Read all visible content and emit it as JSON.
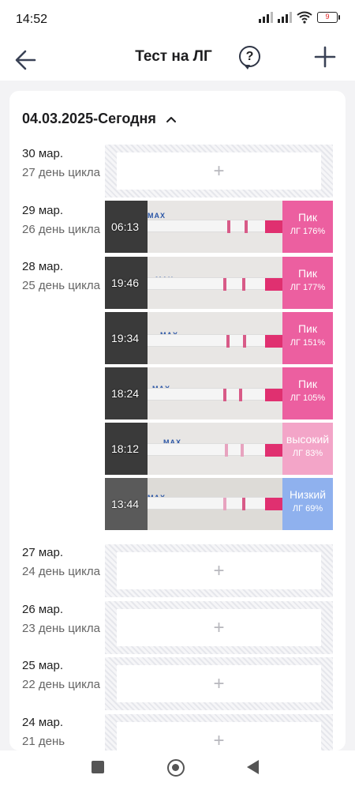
{
  "status_bar": {
    "time": "14:52",
    "battery": "9"
  },
  "header": {
    "title": "Тест на ЛГ",
    "help": "?"
  },
  "period": {
    "label": "04.03.2025-Сегодня"
  },
  "days": [
    {
      "date": "30 мар.",
      "cycle": "27 день цикла"
    },
    {
      "date": "29 мар.",
      "cycle": "26 день цикла"
    },
    {
      "date": "28 мар.",
      "cycle": "25 день цикла"
    },
    {
      "date": "27 мар.",
      "cycle": "24 день цикла"
    },
    {
      "date": "26 мар.",
      "cycle": "23 день цикла"
    },
    {
      "date": "25 мар.",
      "cycle": "22 день цикла"
    },
    {
      "date": "24 мар.",
      "cycle": "21 день"
    }
  ],
  "empty_slot": {
    "plus": "+"
  },
  "tests": [
    {
      "time": "06:13",
      "result": "Пик",
      "value": "ЛГ 176%",
      "color": "#ec5fa0"
    },
    {
      "time": "19:46",
      "result": "Пик",
      "value": "ЛГ 177%",
      "color": "#ec5fa0"
    },
    {
      "time": "19:34",
      "result": "Пик",
      "value": "ЛГ 151%",
      "color": "#ec5fa0"
    },
    {
      "time": "18:24",
      "result": "Пик",
      "value": "ЛГ 105%",
      "color": "#ec5fa0"
    },
    {
      "time": "18:12",
      "result": "высокий",
      "value": "ЛГ 83%",
      "color": "#f3a5c8"
    },
    {
      "time": "13:44",
      "result": "Низкий",
      "value": "ЛГ 69%",
      "color": "#8fb1ee"
    }
  ],
  "strip": {
    "max_label": "MAX"
  }
}
